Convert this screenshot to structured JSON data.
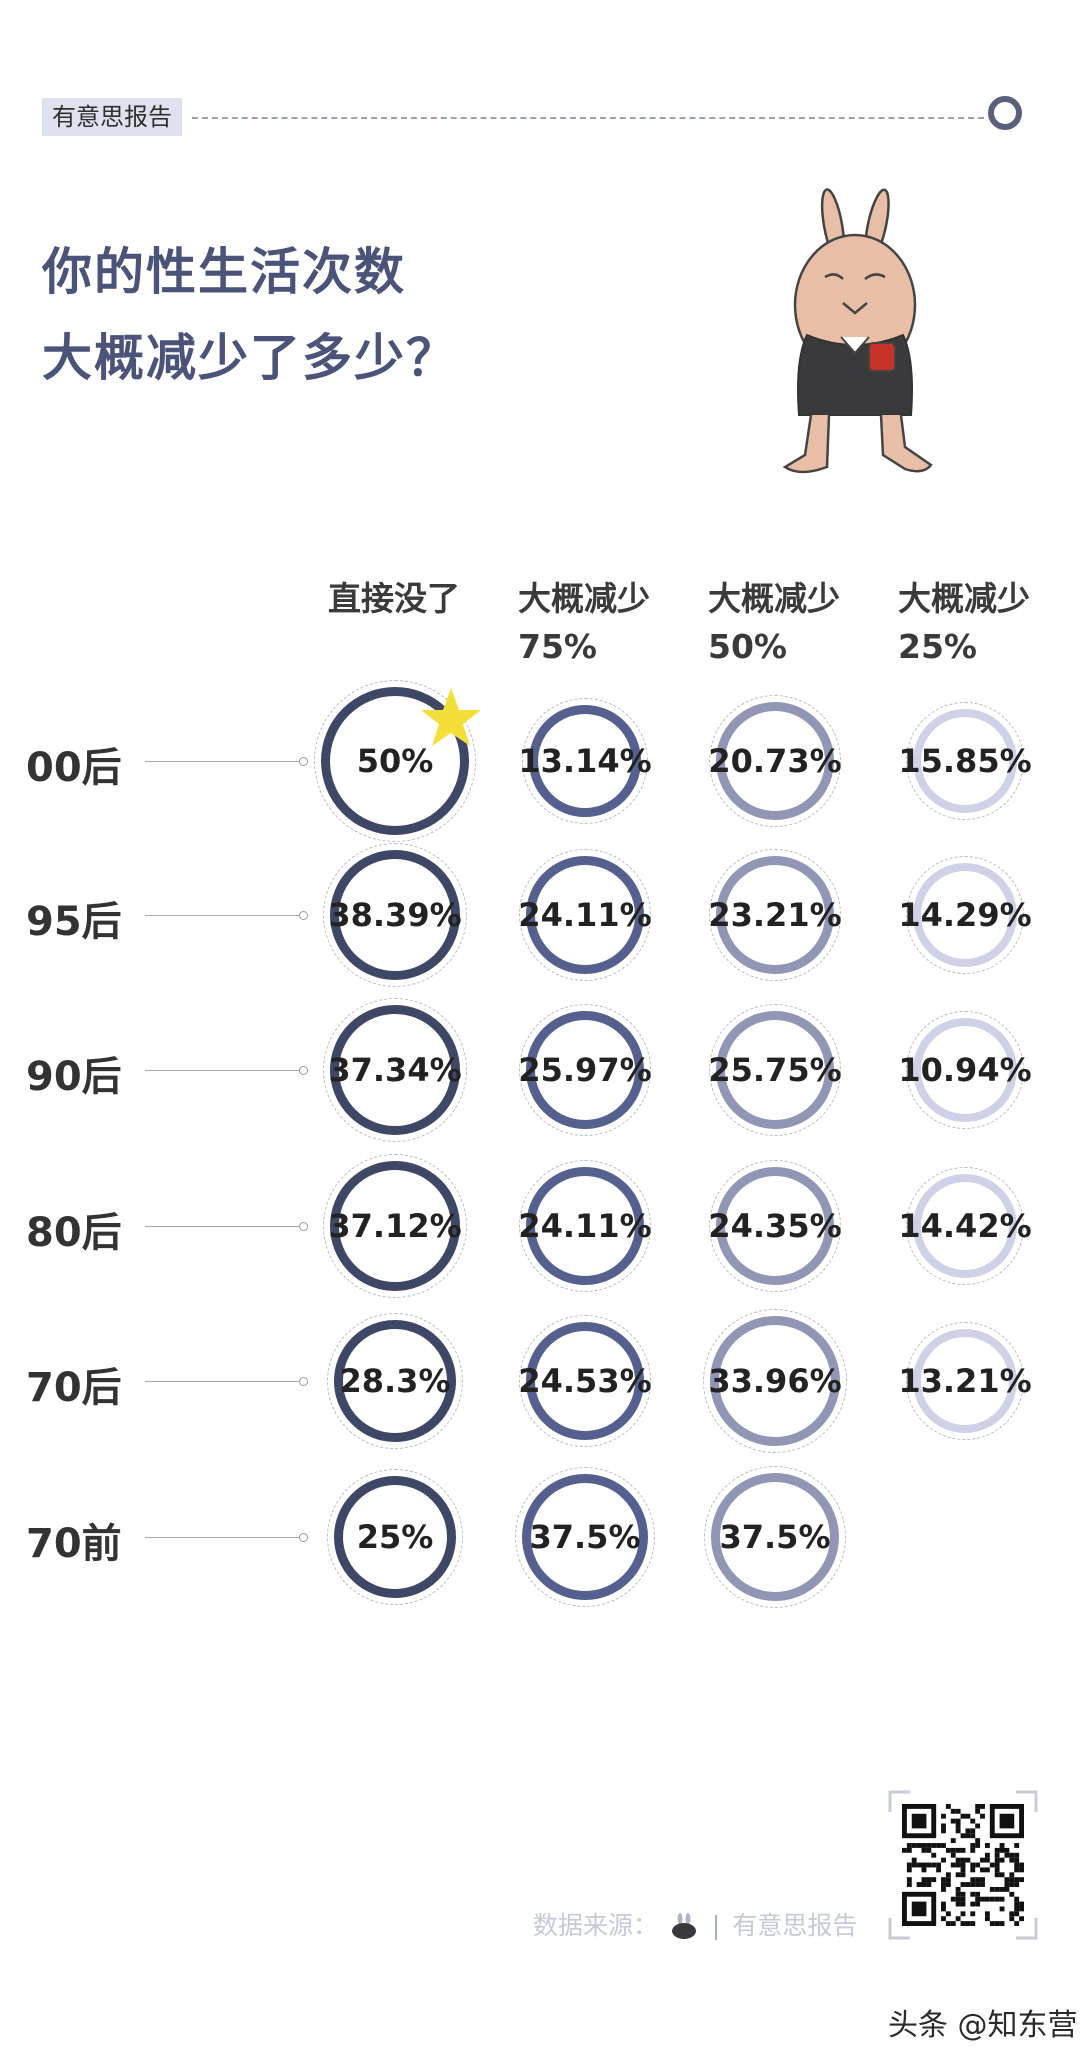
{
  "header": {
    "brand_tag": "有意思报告",
    "title_line1": "你的性生活次数",
    "title_line2": "大概减少了多少？"
  },
  "chart_data": {
    "type": "table",
    "columns": [
      {
        "line1": "直接没了",
        "line2": ""
      },
      {
        "line1": "大概减少",
        "line2": "75%"
      },
      {
        "line1": "大概减少",
        "line2": "50%"
      },
      {
        "line1": "大概减少",
        "line2": "25%"
      }
    ],
    "rows": [
      {
        "label": "00后",
        "values": [
          "50%",
          "13.14%",
          "20.73%",
          "15.85%"
        ]
      },
      {
        "label": "95后",
        "values": [
          "38.39%",
          "24.11%",
          "23.21%",
          "14.29%"
        ]
      },
      {
        "label": "90后",
        "values": [
          "37.34%",
          "25.97%",
          "25.75%",
          "10.94%"
        ]
      },
      {
        "label": "80后",
        "values": [
          "37.12%",
          "24.11%",
          "24.35%",
          "14.42%"
        ]
      },
      {
        "label": "70后",
        "values": [
          "28.3%",
          "24.53%",
          "33.96%",
          "13.21%"
        ]
      },
      {
        "label": "70前",
        "values": [
          "25%",
          "37.5%",
          "37.5%",
          ""
        ]
      }
    ],
    "column_colors": [
      "#3f4766",
      "#55608f",
      "#9096b4",
      "#cfd2e6"
    ]
  },
  "footer": {
    "source_label": "数据来源：",
    "source_name": "有意思报告",
    "watermark": "头条 @知东营"
  }
}
